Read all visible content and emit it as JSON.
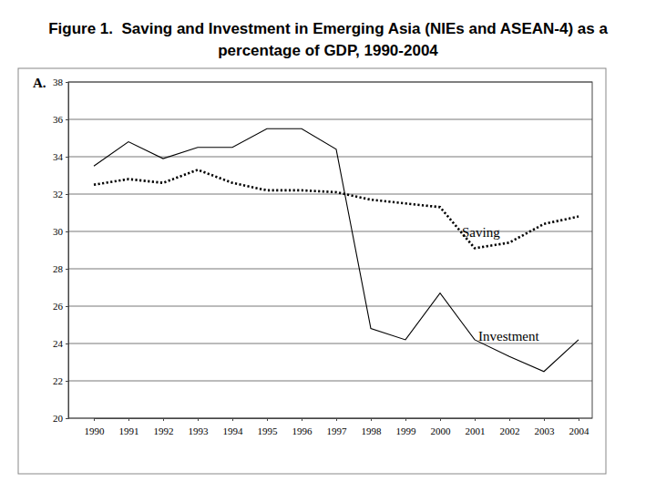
{
  "chart_data": {
    "type": "line",
    "title": "Figure 1.  Saving and Investment in Emerging Asia (NIEs and ASEAN-4) as a percentage of GDP, 1990-2004",
    "annotations": [
      "A."
    ],
    "categories": [
      "1990",
      "1991",
      "1992",
      "1993",
      "1994",
      "1995",
      "1996",
      "1997",
      "1998",
      "1999",
      "2000",
      "2001",
      "2002",
      "2003",
      "2004"
    ],
    "series": [
      {
        "name": "Saving",
        "color": "#000000",
        "line_style": "dotted",
        "values": [
          32.5,
          32.8,
          32.6,
          33.3,
          32.6,
          32.2,
          32.2,
          32.1,
          31.7,
          31.5,
          31.3,
          29.1,
          29.4,
          30.4,
          30.8
        ]
      },
      {
        "name": "Investment",
        "color": "#000000",
        "line_style": "solid",
        "values": [
          33.5,
          34.8,
          33.9,
          34.5,
          34.5,
          35.5,
          35.5,
          34.4,
          24.8,
          24.2,
          26.7,
          24.2,
          23.3,
          22.5,
          24.2
        ]
      }
    ],
    "ylim": [
      20,
      38
    ],
    "yticks": [
      20,
      22,
      24,
      26,
      28,
      30,
      32,
      34,
      36,
      38
    ],
    "grid": true
  }
}
